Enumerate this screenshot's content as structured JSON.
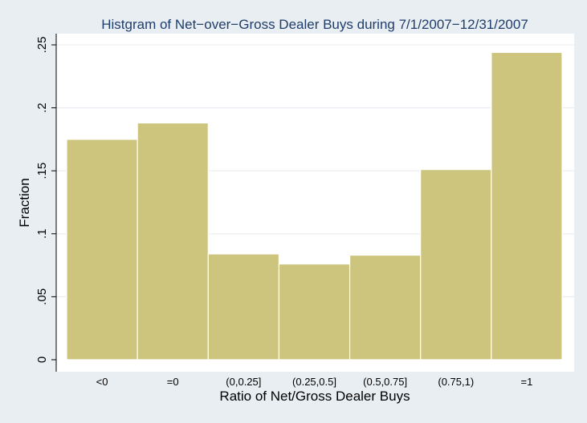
{
  "chart_data": {
    "type": "bar",
    "title": "Histgram of Net−over−Gross Dealer Buys during 7/1/2007−12/31/2007",
    "xlabel": "Ratio of Net/Gross Dealer Buys",
    "ylabel": "Fraction",
    "categories": [
      "<0",
      "=0",
      "(0,0.25]",
      "(0.25,0.5]",
      "(0.5,0.75]",
      "(0.75,1)",
      "=1"
    ],
    "values": [
      0.175,
      0.188,
      0.084,
      0.076,
      0.083,
      0.151,
      0.244
    ],
    "ylim": [
      0,
      0.25
    ],
    "yticks": [
      0,
      0.05,
      0.1,
      0.15,
      0.2,
      0.25
    ],
    "ytick_labels": [
      "0",
      ".05",
      ".1",
      ".15",
      ".2",
      ".25"
    ],
    "grid": true,
    "colors": {
      "background": "#e9eef2",
      "plot_background": "#ffffff",
      "bar_fill": "#cdc47e",
      "bar_stroke": "#ffffff",
      "grid": "#e9eef2",
      "axis": "#000000",
      "title": "#1f3d6b"
    }
  }
}
